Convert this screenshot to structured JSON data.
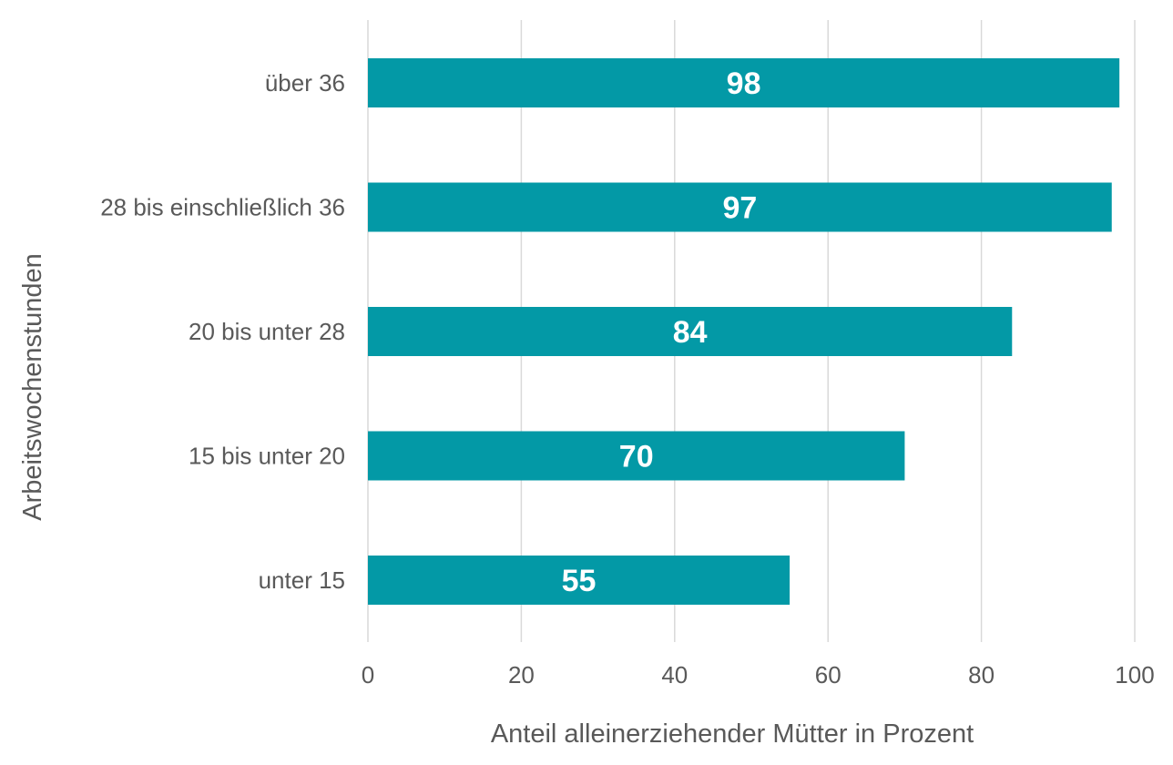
{
  "chart_data": {
    "type": "bar",
    "orientation": "horizontal",
    "categories": [
      "über 36",
      "28 bis einschließlich 36",
      "20 bis unter 28",
      "15 bis unter 20",
      "unter 15"
    ],
    "values": [
      98,
      97,
      84,
      70,
      55
    ],
    "data_labels": [
      "98",
      "97",
      "84",
      "70",
      "55"
    ],
    "xlabel": "Anteil alleinerziehender Mütter in Prozent",
    "ylabel": "Arbeitswochenstunden",
    "xlim": [
      0,
      100
    ],
    "xticks": [
      0,
      20,
      40,
      60,
      80,
      100
    ],
    "xtick_labels": [
      "0",
      "20",
      "40",
      "60",
      "80",
      "100"
    ],
    "grid": "vertical",
    "legend": "none",
    "bar_color": "#0399A6"
  }
}
